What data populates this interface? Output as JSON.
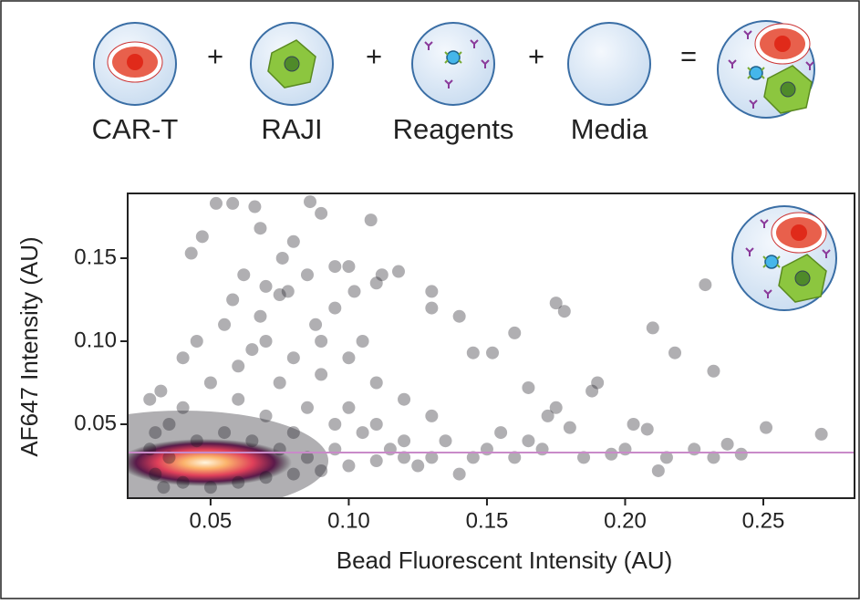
{
  "diagram": {
    "labels": [
      "CAR-T",
      "RAJI",
      "Reagents",
      "Media"
    ],
    "operators": [
      "+",
      "+",
      "+",
      "="
    ]
  },
  "chart_data": {
    "type": "scatter",
    "xlabel": "Bead Fluorescent Intensity (AU)",
    "ylabel": "AF647 Intensity (AU)",
    "xlim": [
      0.02,
      0.283
    ],
    "ylim": [
      0.0055,
      0.189
    ],
    "xticks": [
      {
        "value": 0.05,
        "label": "0.05"
      },
      {
        "value": 0.1,
        "label": "0.10"
      },
      {
        "value": 0.15,
        "label": "0.15"
      },
      {
        "value": 0.2,
        "label": "0.20"
      },
      {
        "value": 0.25,
        "label": "0.25"
      }
    ],
    "yticks": [
      {
        "value": 0.05,
        "label": "0.05"
      },
      {
        "value": 0.1,
        "label": "0.10"
      },
      {
        "value": 0.15,
        "label": "0.15"
      }
    ],
    "color": "#1e1a22",
    "hline": 0.033,
    "hline_color": "#c98ac9",
    "x": [
      0.043,
      0.047,
      0.052,
      0.058,
      0.066,
      0.068,
      0.086,
      0.09,
      0.108,
      0.08,
      0.076,
      0.085,
      0.095,
      0.1,
      0.112,
      0.118,
      0.062,
      0.07,
      0.075,
      0.078,
      0.102,
      0.11,
      0.13,
      0.14,
      0.13,
      0.175,
      0.178,
      0.16,
      0.152,
      0.145,
      0.21,
      0.218,
      0.229,
      0.232,
      0.19,
      0.188,
      0.165,
      0.203,
      0.208,
      0.175,
      0.172,
      0.18,
      0.251,
      0.271,
      0.242,
      0.237,
      0.232,
      0.225,
      0.215,
      0.212,
      0.2,
      0.195,
      0.185,
      0.17,
      0.16,
      0.15,
      0.14,
      0.13,
      0.12,
      0.11,
      0.1,
      0.09,
      0.08,
      0.07,
      0.06,
      0.05,
      0.04,
      0.035,
      0.03,
      0.028,
      0.032,
      0.04,
      0.045,
      0.055,
      0.065,
      0.075,
      0.085,
      0.095,
      0.105,
      0.115,
      0.125,
      0.135,
      0.145,
      0.155,
      0.165,
      0.09,
      0.1,
      0.11,
      0.12,
      0.13,
      0.06,
      0.07,
      0.08,
      0.045,
      0.055,
      0.065,
      0.075,
      0.085,
      0.095,
      0.03,
      0.035,
      0.04,
      0.05,
      0.06,
      0.07,
      0.08,
      0.09,
      0.1,
      0.11,
      0.12,
      0.028,
      0.033,
      0.105,
      0.095,
      0.088,
      0.058,
      0.068
    ],
    "values": [
      0.153,
      0.163,
      0.183,
      0.183,
      0.181,
      0.168,
      0.184,
      0.177,
      0.173,
      0.16,
      0.15,
      0.14,
      0.145,
      0.145,
      0.14,
      0.142,
      0.14,
      0.133,
      0.128,
      0.13,
      0.13,
      0.135,
      0.13,
      0.115,
      0.12,
      0.123,
      0.118,
      0.105,
      0.093,
      0.093,
      0.108,
      0.093,
      0.134,
      0.082,
      0.075,
      0.07,
      0.072,
      0.05,
      0.047,
      0.06,
      0.055,
      0.048,
      0.048,
      0.044,
      0.032,
      0.038,
      0.03,
      0.035,
      0.03,
      0.022,
      0.035,
      0.032,
      0.03,
      0.035,
      0.03,
      0.035,
      0.02,
      0.03,
      0.04,
      0.05,
      0.06,
      0.08,
      0.09,
      0.1,
      0.085,
      0.075,
      0.06,
      0.05,
      0.045,
      0.065,
      0.07,
      0.09,
      0.1,
      0.11,
      0.095,
      0.075,
      0.06,
      0.05,
      0.045,
      0.035,
      0.025,
      0.04,
      0.03,
      0.045,
      0.04,
      0.1,
      0.09,
      0.075,
      0.065,
      0.055,
      0.065,
      0.055,
      0.045,
      0.04,
      0.045,
      0.04,
      0.035,
      0.03,
      0.035,
      0.02,
      0.03,
      0.015,
      0.012,
      0.015,
      0.018,
      0.02,
      0.022,
      0.025,
      0.028,
      0.03,
      0.035,
      0.012,
      0.1,
      0.12,
      0.11,
      0.125,
      0.115
    ]
  }
}
